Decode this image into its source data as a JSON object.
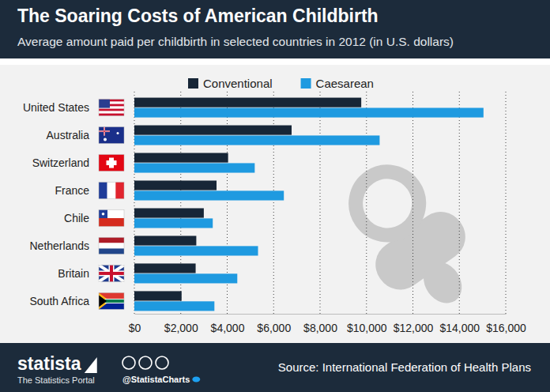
{
  "chart_data": {
    "type": "bar",
    "orientation": "horizontal",
    "title": "The Soaring Costs of American Childbirth",
    "subtitle": "Average amount paid per childbirth in selected countries in 2012 (in U.S. dollars)",
    "categories": [
      "United States",
      "Australia",
      "Switzerland",
      "France",
      "Chile",
      "Netherlands",
      "Britain",
      "South Africa"
    ],
    "series": [
      {
        "name": "Conventional",
        "color": "#172637",
        "values": [
          9775,
          6775,
          4039,
          3541,
          2992,
          2669,
          2641,
          2035
        ]
      },
      {
        "name": "Caesarean",
        "color": "#1f9ae0",
        "values": [
          15041,
          10567,
          5186,
          6441,
          3378,
          5328,
          4435,
          3449
        ]
      }
    ],
    "xlim": [
      0,
      16000
    ],
    "xticks": [
      {
        "value": 0,
        "label": "$0"
      },
      {
        "value": 2000,
        "label": "$2,000"
      },
      {
        "value": 4000,
        "label": "$4,000"
      },
      {
        "value": 6000,
        "label": "$6,000"
      },
      {
        "value": 8000,
        "label": "$8,000"
      },
      {
        "value": 10000,
        "label": "$10,000"
      },
      {
        "value": 12000,
        "label": "$12,000"
      },
      {
        "value": 14000,
        "label": "$14,000"
      },
      {
        "value": 16000,
        "label": "$16,000"
      }
    ],
    "grid": true,
    "legend": "top",
    "logo": "statista",
    "logo_subtitle": "The Statistics Portal",
    "credit": "@StatistaCharts",
    "source": "Source: International Federation of Health Plans"
  }
}
